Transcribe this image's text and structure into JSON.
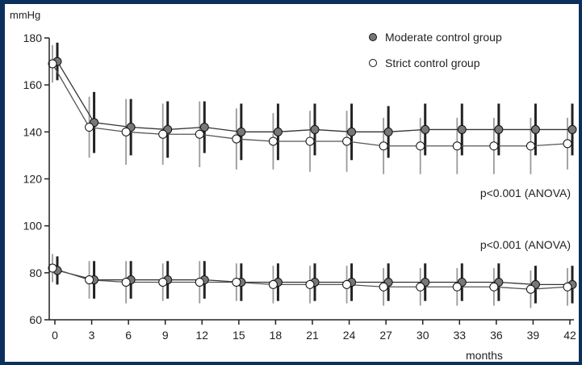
{
  "chart_data": {
    "type": "line",
    "ylabel": "mmHg",
    "xlabel": "months",
    "ylim": [
      60,
      180
    ],
    "yticks": [
      60,
      80,
      100,
      120,
      140,
      160,
      180
    ],
    "x": [
      0,
      3,
      6,
      9,
      12,
      15,
      18,
      21,
      24,
      27,
      30,
      33,
      36,
      39,
      42
    ],
    "x_tick_labels": [
      "0",
      "3",
      "6",
      "9",
      "12",
      "15",
      "18",
      "21",
      "24",
      "27",
      "30",
      "33",
      "36",
      "39",
      "42"
    ],
    "grid": false,
    "legend_position": "top-right",
    "legend": [
      {
        "label": "Moderate control group",
        "marker": "filled",
        "color": "#777777"
      },
      {
        "label": "Strict control group",
        "marker": "open",
        "color": "#ffffff"
      }
    ],
    "series": [
      {
        "name": "Moderate control group",
        "measure": "systolic",
        "values": [
          170,
          144,
          142,
          141,
          142,
          140,
          140,
          141,
          140,
          140,
          141,
          141,
          141,
          141,
          141
        ],
        "error": [
          8,
          13,
          12,
          12,
          11,
          12,
          12,
          11,
          12,
          11,
          11,
          11,
          11,
          11,
          11
        ],
        "marker": "filled"
      },
      {
        "name": "Strict control group",
        "measure": "systolic",
        "values": [
          169,
          142,
          140,
          139,
          139,
          137,
          136,
          136,
          136,
          134,
          134,
          134,
          134,
          134,
          135
        ],
        "error": [
          8,
          13,
          14,
          13,
          14,
          13,
          12,
          13,
          13,
          12,
          12,
          12,
          12,
          12,
          11
        ],
        "marker": "open"
      },
      {
        "name": "Moderate control group",
        "measure": "diastolic",
        "values": [
          81,
          77,
          77,
          77,
          77,
          76,
          76,
          76,
          76,
          76,
          76,
          76,
          76,
          75,
          75
        ],
        "error": [
          6,
          8,
          8,
          8,
          8,
          8,
          8,
          8,
          8,
          8,
          8,
          8,
          8,
          8,
          8
        ],
        "marker": "filled"
      },
      {
        "name": "Strict control group",
        "measure": "diastolic",
        "values": [
          82,
          77,
          76,
          76,
          76,
          76,
          75,
          75,
          75,
          74,
          74,
          74,
          74,
          73,
          74
        ],
        "error": [
          6,
          8,
          9,
          8,
          9,
          8,
          8,
          8,
          8,
          8,
          8,
          8,
          8,
          8,
          8
        ],
        "marker": "open"
      }
    ],
    "annotations": [
      {
        "text": "p<0.001 (ANOVA)",
        "near_y": 125
      },
      {
        "text": "p<0.001 (ANOVA)",
        "near_y": 91
      }
    ]
  }
}
